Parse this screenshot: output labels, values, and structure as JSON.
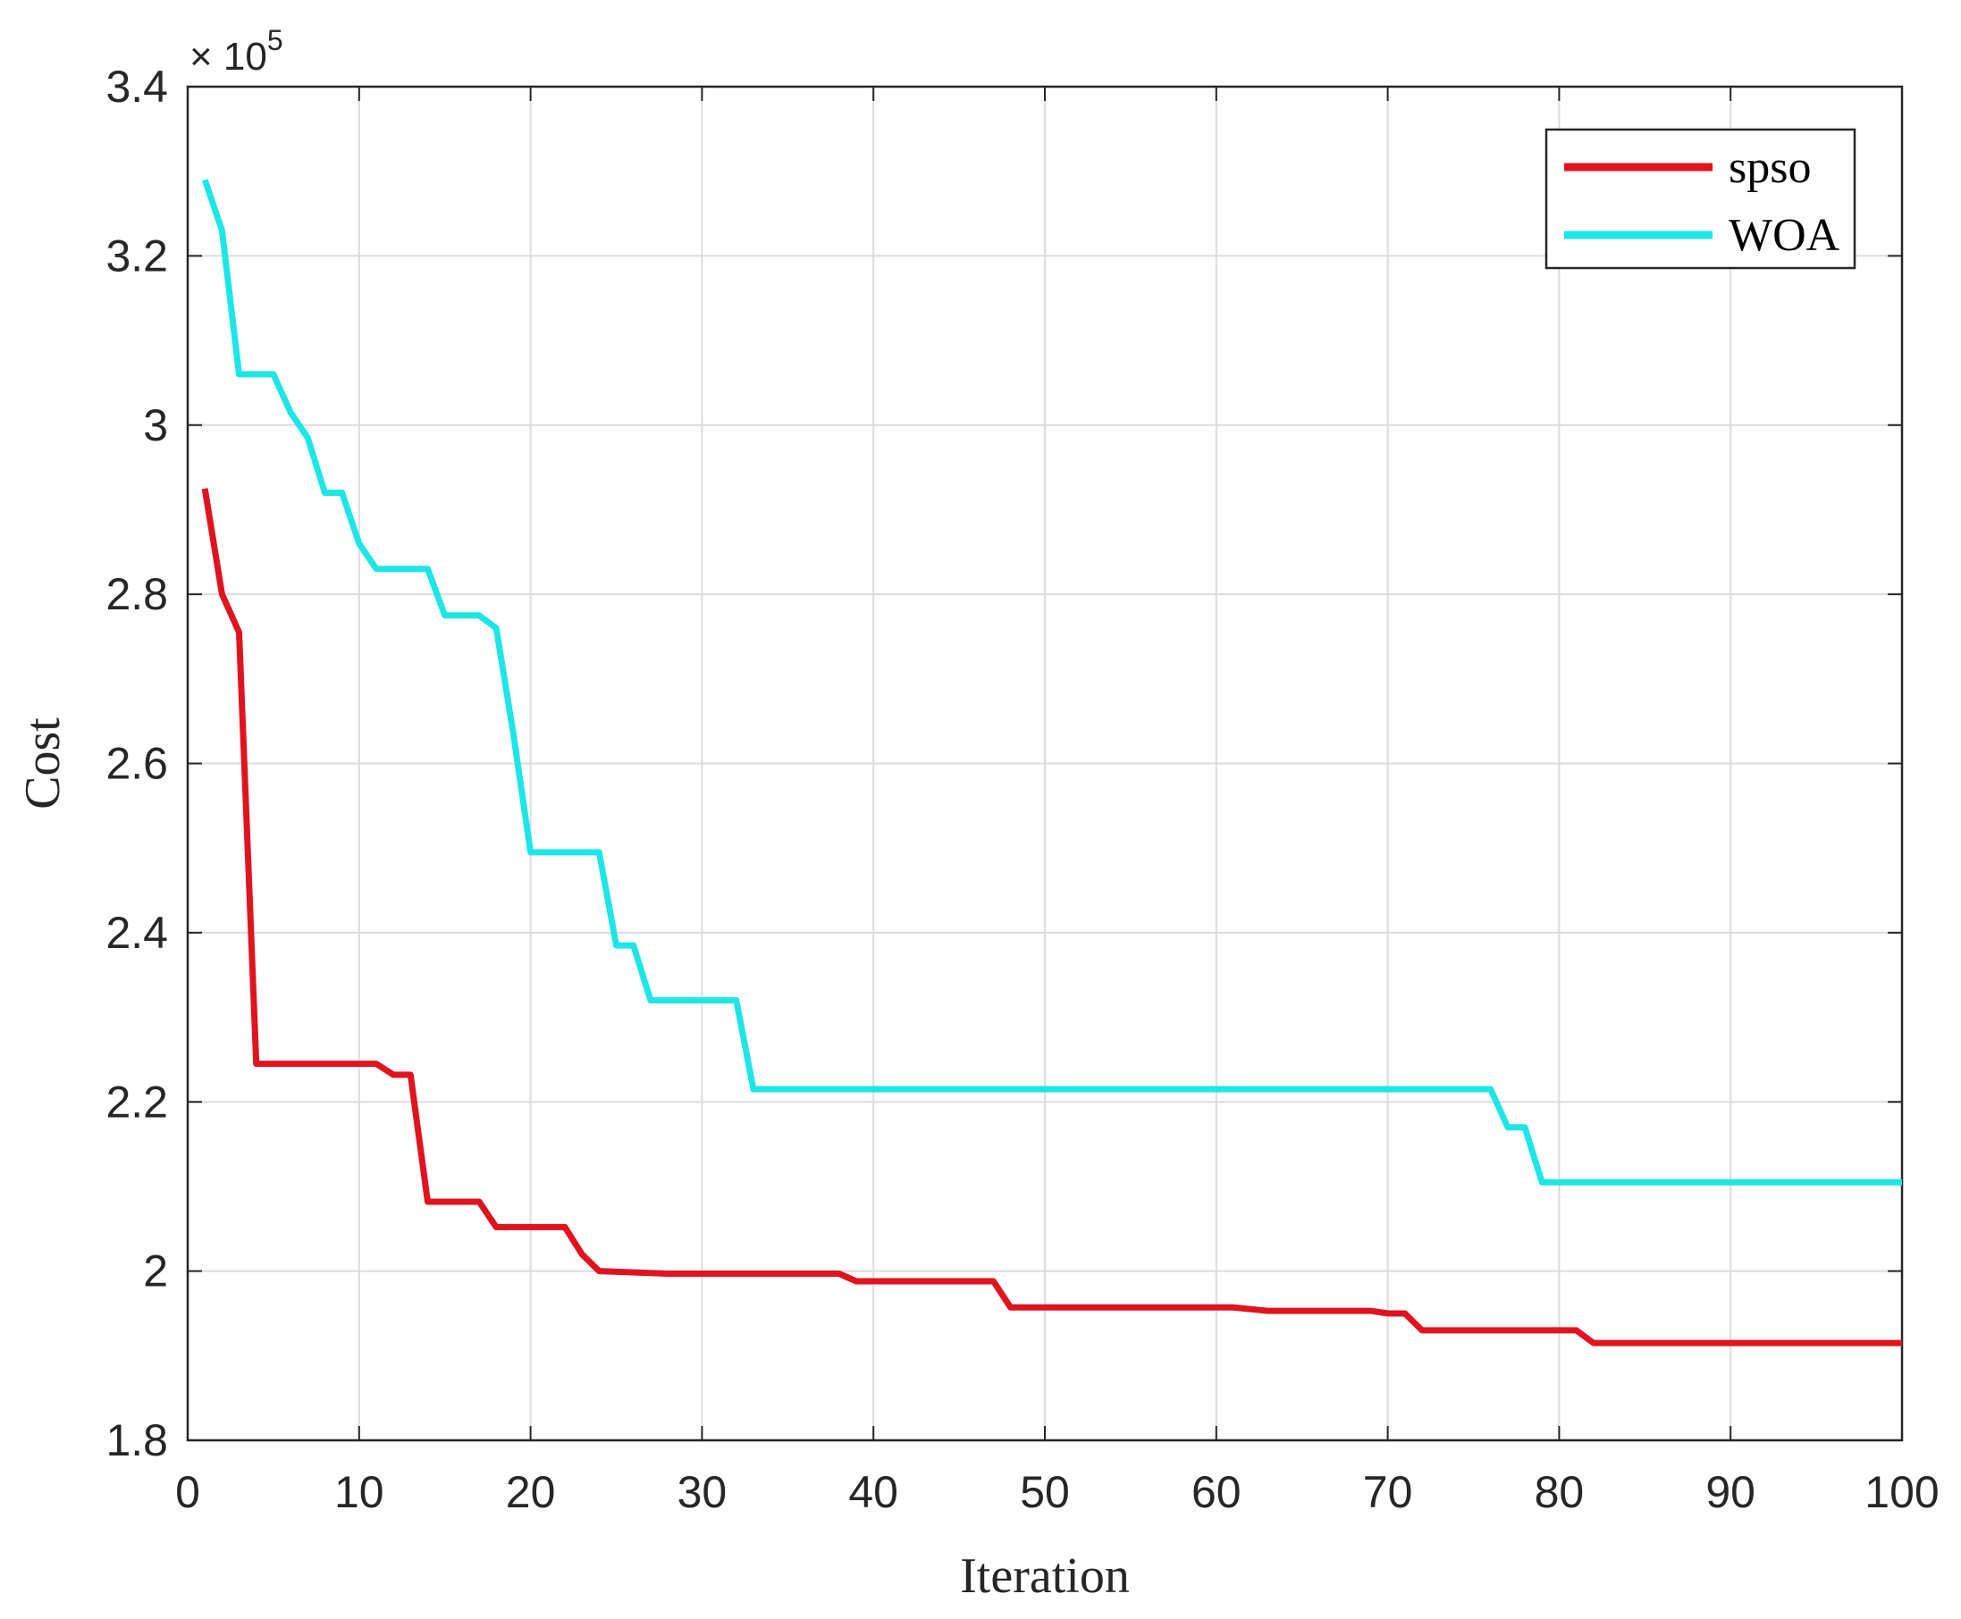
{
  "chart_data": {
    "type": "line",
    "title": "",
    "xlabel": "Iteration",
    "ylabel": "Cost",
    "y_exponent": "5",
    "y_exponent_prefix": "× 10",
    "xlim": [
      0,
      100
    ],
    "ylim": [
      1.8,
      3.4
    ],
    "y_scale_factor": 100000,
    "x_ticks": [
      "0",
      "10",
      "20",
      "30",
      "40",
      "50",
      "60",
      "70",
      "80",
      "90",
      "100"
    ],
    "y_ticks": [
      "1.8",
      "2",
      "2.2",
      "2.4",
      "2.6",
      "2.8",
      "3",
      "3.2",
      "3.4"
    ],
    "grid": true,
    "legend_position": "top-right",
    "series": [
      {
        "name": "spso",
        "color": "#e0141e",
        "x": [
          1,
          2,
          3,
          4,
          5,
          10,
          11,
          12,
          13,
          14,
          15,
          16,
          17,
          18,
          22,
          23,
          24,
          28,
          38,
          39,
          47,
          48,
          61,
          62,
          63,
          69,
          70,
          71,
          72,
          81,
          82,
          100
        ],
        "y": [
          2.925,
          2.8,
          2.755,
          2.245,
          2.245,
          2.245,
          2.245,
          2.232,
          2.232,
          2.082,
          2.082,
          2.082,
          2.082,
          2.052,
          2.052,
          2.02,
          2.0,
          1.997,
          1.997,
          1.988,
          1.988,
          1.957,
          1.957,
          1.955,
          1.953,
          1.953,
          1.95,
          1.95,
          1.93,
          1.93,
          1.915,
          1.915
        ]
      },
      {
        "name": "WOA",
        "color": "#1ee6e6",
        "x": [
          1,
          2,
          3,
          4,
          5,
          6,
          7,
          8,
          9,
          10,
          11,
          12,
          14,
          15,
          17,
          18,
          19,
          20,
          24,
          25,
          26,
          27,
          32,
          33,
          76,
          77,
          78,
          79,
          100
        ],
        "y": [
          3.29,
          3.23,
          3.06,
          3.06,
          3.06,
          3.015,
          2.985,
          2.92,
          2.92,
          2.86,
          2.83,
          2.83,
          2.83,
          2.775,
          2.775,
          2.76,
          2.635,
          2.495,
          2.495,
          2.385,
          2.385,
          2.32,
          2.32,
          2.215,
          2.215,
          2.17,
          2.17,
          2.105,
          2.105
        ]
      }
    ]
  }
}
